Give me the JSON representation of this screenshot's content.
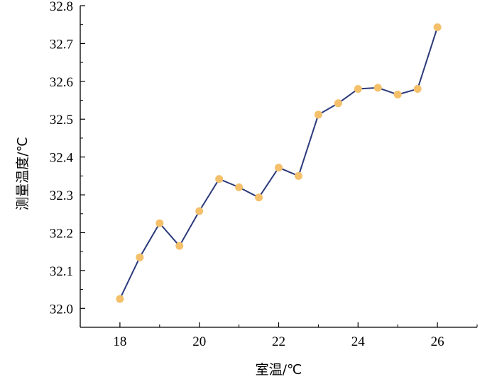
{
  "chart_data": {
    "type": "line",
    "title": "",
    "xlabel": "室温/℃",
    "ylabel": "测量温度/℃",
    "xlim": [
      17,
      27
    ],
    "ylim": [
      31.95,
      32.8
    ],
    "x_ticks": [
      18,
      20,
      22,
      24,
      26
    ],
    "x_tick_labels": [
      "18",
      "20",
      "22",
      "24",
      "26"
    ],
    "y_ticks": [
      32.0,
      32.1,
      32.2,
      32.3,
      32.4,
      32.5,
      32.6,
      32.7,
      32.8
    ],
    "y_tick_labels": [
      "32.0",
      "32.1",
      "32.2",
      "32.3",
      "32.4",
      "32.5",
      "32.6",
      "32.7",
      "32.8"
    ],
    "grid": false,
    "legend": "none",
    "series": [
      {
        "x": [
          18,
          18.5,
          19,
          19.5,
          20,
          20.5,
          21,
          21.5,
          22,
          22.5,
          23,
          23.5,
          24,
          24.5,
          25,
          25.5,
          26
        ],
        "y": [
          32.025,
          32.135,
          32.225,
          32.165,
          32.257,
          32.342,
          32.32,
          32.293,
          32.372,
          32.35,
          32.512,
          32.542,
          32.58,
          32.583,
          32.565,
          32.58,
          32.743
        ],
        "line_color": "#2b3a7a",
        "marker_color": "#f4c06a"
      }
    ]
  }
}
